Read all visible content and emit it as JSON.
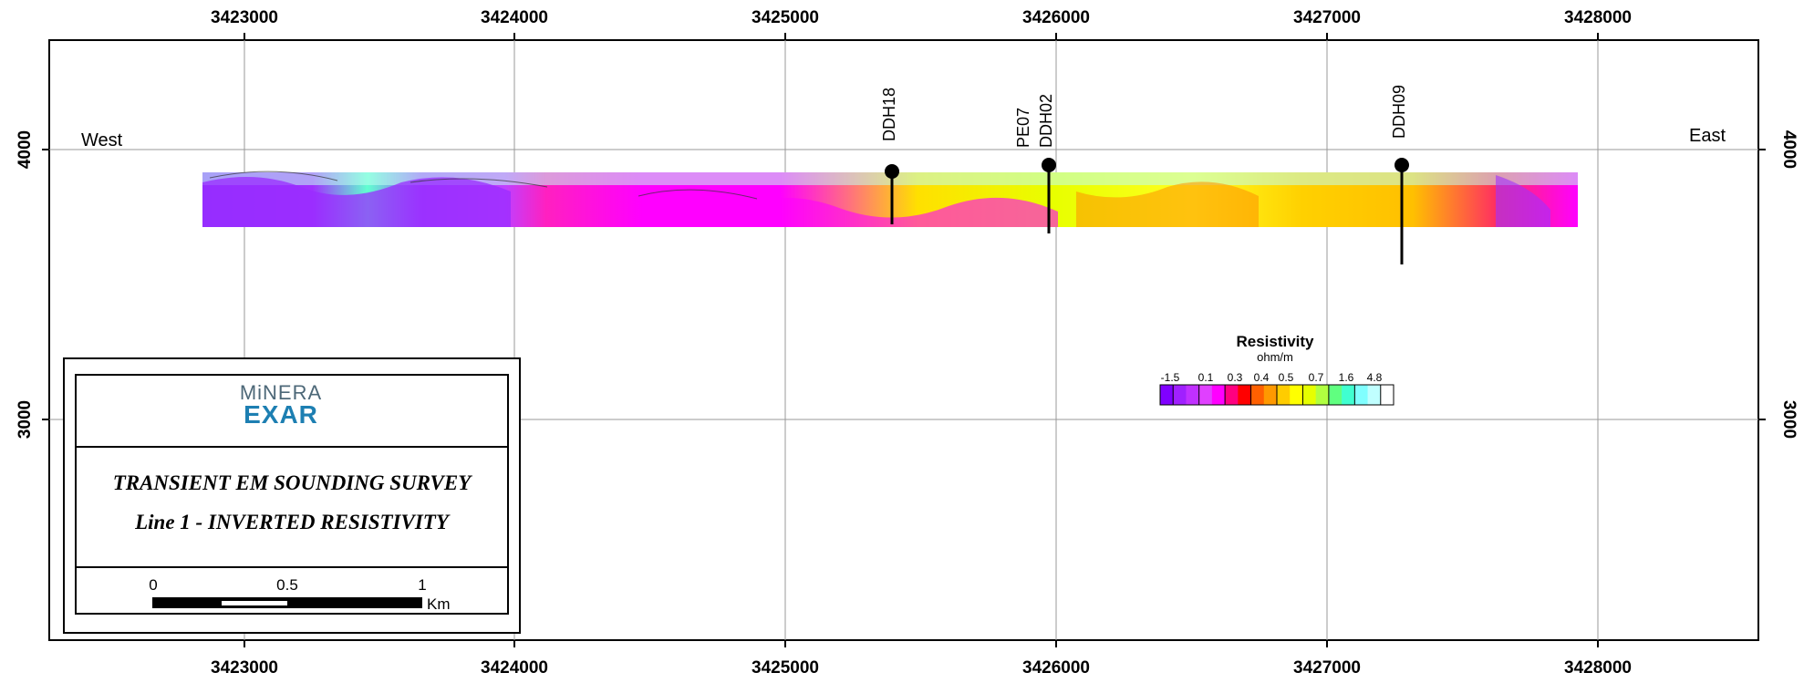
{
  "axes": {
    "x_ticks": [
      "3423000",
      "3424000",
      "3425000",
      "3426000",
      "3427000",
      "3428000"
    ],
    "y_ticks": [
      "4000",
      "3000"
    ]
  },
  "labels": {
    "west": "West",
    "east": "East"
  },
  "drillholes": [
    "DDH18",
    "PE07",
    "DDH02",
    "DDH09"
  ],
  "legend": {
    "title": "Resistivity",
    "unit": "ohm/m",
    "ticks": [
      "-1.5",
      "0.1",
      "0.3",
      "0.4",
      "0.5",
      "0.7",
      "1.6",
      "4.8"
    ],
    "colors": [
      "#8000ff",
      "#a020ff",
      "#c030ff",
      "#e040ff",
      "#ff00ff",
      "#ff0080",
      "#ff0000",
      "#ff6000",
      "#ff9900",
      "#ffcc00",
      "#ffff00",
      "#e6ff00",
      "#b0ff40",
      "#60ff80",
      "#40ffd0",
      "#80ffff",
      "#c0ffff",
      "#ffffff"
    ]
  },
  "title_box": {
    "logo_line1": "MiNERA",
    "logo_line2": "EXAR",
    "title1": "TRANSIENT EM SOUNDING SURVEY",
    "title2": "Line 1 - INVERTED RESISTIVITY",
    "scale_0": "0",
    "scale_half": "0.5",
    "scale_1": "1",
    "scale_unit": "Km"
  }
}
